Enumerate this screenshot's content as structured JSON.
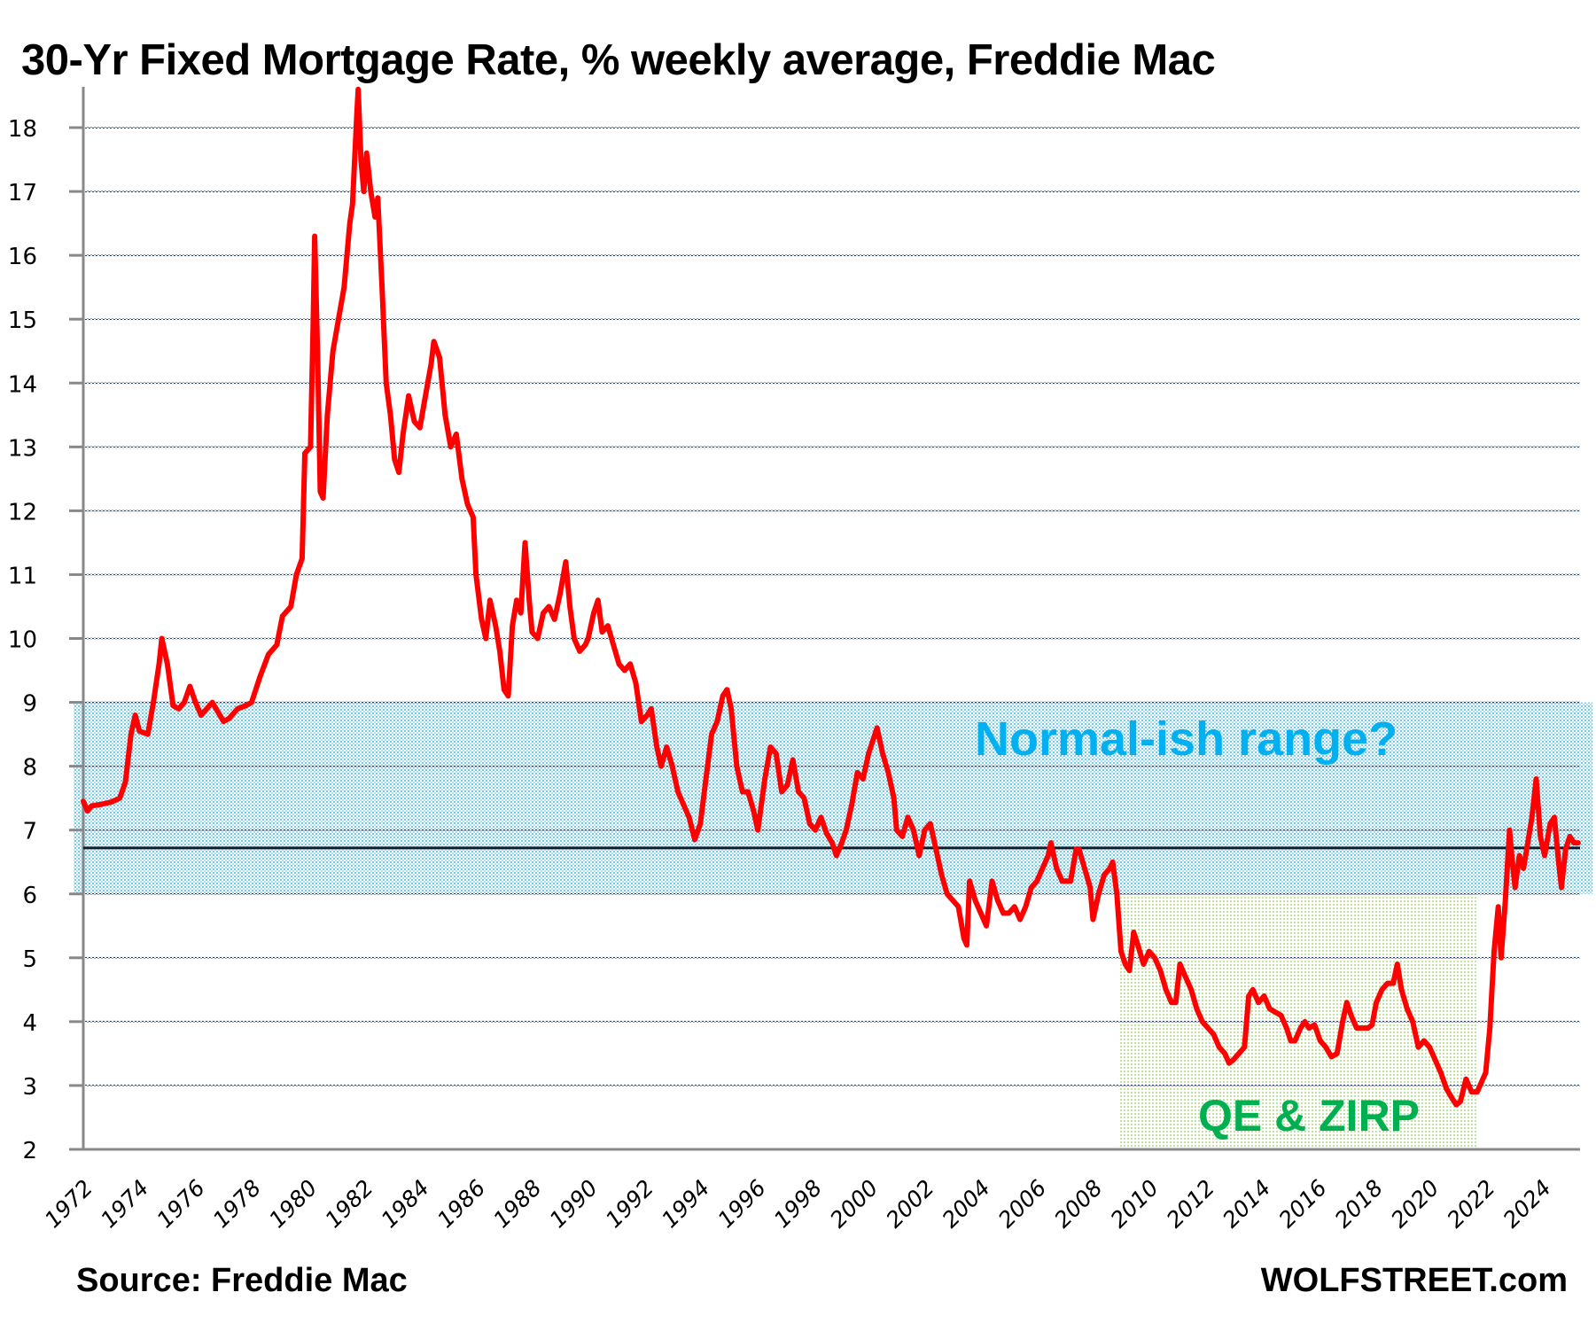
{
  "chart_data": {
    "type": "line",
    "title": "30-Yr Fixed Mortgage Rate, % weekly average, Freddie Mac",
    "xlabel": "",
    "ylabel": "",
    "xlim": [
      1972,
      2025.4
    ],
    "ylim": [
      2,
      18.7
    ],
    "grid": true,
    "y_ticks": [
      2,
      3,
      4,
      5,
      6,
      7,
      8,
      9,
      10,
      11,
      12,
      13,
      14,
      15,
      16,
      17,
      18
    ],
    "x_ticks": [
      "1972",
      "1974",
      "1976",
      "1978",
      "1980",
      "1982",
      "1984",
      "1986",
      "1988",
      "1990",
      "1992",
      "1994",
      "1996",
      "1998",
      "2000",
      "2002",
      "2004",
      "2006",
      "2008",
      "2010",
      "2012",
      "2014",
      "2016",
      "2018",
      "2020",
      "2022",
      "2024"
    ],
    "series": [
      {
        "name": "30-Yr Fixed Mortgage Rate",
        "color": "#ff0000",
        "points": [
          [
            1972.0,
            7.45
          ],
          [
            1972.15,
            7.3
          ],
          [
            1972.3,
            7.38
          ],
          [
            1972.6,
            7.4
          ],
          [
            1973.0,
            7.44
          ],
          [
            1973.3,
            7.5
          ],
          [
            1973.5,
            7.75
          ],
          [
            1973.7,
            8.5
          ],
          [
            1973.85,
            8.8
          ],
          [
            1974.0,
            8.55
          ],
          [
            1974.3,
            8.5
          ],
          [
            1974.5,
            9.0
          ],
          [
            1974.7,
            9.6
          ],
          [
            1974.8,
            10.0
          ],
          [
            1975.0,
            9.6
          ],
          [
            1975.2,
            8.95
          ],
          [
            1975.4,
            8.9
          ],
          [
            1975.6,
            9.0
          ],
          [
            1975.8,
            9.25
          ],
          [
            1976.0,
            9.0
          ],
          [
            1976.2,
            8.8
          ],
          [
            1976.4,
            8.9
          ],
          [
            1976.6,
            9.0
          ],
          [
            1976.8,
            8.85
          ],
          [
            1977.0,
            8.7
          ],
          [
            1977.2,
            8.75
          ],
          [
            1977.5,
            8.9
          ],
          [
            1977.8,
            8.95
          ],
          [
            1978.0,
            9.0
          ],
          [
            1978.3,
            9.4
          ],
          [
            1978.6,
            9.75
          ],
          [
            1978.9,
            9.9
          ],
          [
            1979.1,
            10.35
          ],
          [
            1979.4,
            10.5
          ],
          [
            1979.6,
            11.0
          ],
          [
            1979.8,
            11.25
          ],
          [
            1979.9,
            12.9
          ],
          [
            1980.1,
            13.0
          ],
          [
            1980.2,
            15.0
          ],
          [
            1980.25,
            16.3
          ],
          [
            1980.35,
            14.5
          ],
          [
            1980.45,
            12.3
          ],
          [
            1980.55,
            12.2
          ],
          [
            1980.7,
            13.5
          ],
          [
            1980.9,
            14.5
          ],
          [
            1981.1,
            15.0
          ],
          [
            1981.3,
            15.5
          ],
          [
            1981.5,
            16.5
          ],
          [
            1981.6,
            16.8
          ],
          [
            1981.75,
            18.2
          ],
          [
            1981.8,
            18.6
          ],
          [
            1981.9,
            17.5
          ],
          [
            1982.0,
            17.0
          ],
          [
            1982.1,
            17.6
          ],
          [
            1982.25,
            17.0
          ],
          [
            1982.4,
            16.6
          ],
          [
            1982.5,
            16.9
          ],
          [
            1982.65,
            15.5
          ],
          [
            1982.8,
            14.0
          ],
          [
            1982.95,
            13.5
          ],
          [
            1983.1,
            12.8
          ],
          [
            1983.25,
            12.6
          ],
          [
            1983.4,
            13.2
          ],
          [
            1983.6,
            13.8
          ],
          [
            1983.8,
            13.4
          ],
          [
            1984.0,
            13.3
          ],
          [
            1984.2,
            13.8
          ],
          [
            1984.4,
            14.3
          ],
          [
            1984.5,
            14.65
          ],
          [
            1984.7,
            14.4
          ],
          [
            1984.9,
            13.5
          ],
          [
            1985.1,
            13.0
          ],
          [
            1985.3,
            13.2
          ],
          [
            1985.5,
            12.5
          ],
          [
            1985.7,
            12.1
          ],
          [
            1985.9,
            11.9
          ],
          [
            1986.0,
            11.0
          ],
          [
            1986.2,
            10.3
          ],
          [
            1986.35,
            10.0
          ],
          [
            1986.5,
            10.6
          ],
          [
            1986.7,
            10.2
          ],
          [
            1986.85,
            9.8
          ],
          [
            1987.0,
            9.2
          ],
          [
            1987.15,
            9.1
          ],
          [
            1987.3,
            10.2
          ],
          [
            1987.45,
            10.6
          ],
          [
            1987.6,
            10.4
          ],
          [
            1987.75,
            11.5
          ],
          [
            1987.9,
            10.6
          ],
          [
            1988.0,
            10.1
          ],
          [
            1988.2,
            10.0
          ],
          [
            1988.4,
            10.4
          ],
          [
            1988.6,
            10.5
          ],
          [
            1988.8,
            10.3
          ],
          [
            1989.0,
            10.7
          ],
          [
            1989.2,
            11.2
          ],
          [
            1989.35,
            10.5
          ],
          [
            1989.5,
            10.0
          ],
          [
            1989.7,
            9.8
          ],
          [
            1989.9,
            9.9
          ],
          [
            1990.0,
            10.0
          ],
          [
            1990.2,
            10.4
          ],
          [
            1990.35,
            10.6
          ],
          [
            1990.5,
            10.1
          ],
          [
            1990.7,
            10.2
          ],
          [
            1990.9,
            9.9
          ],
          [
            1991.1,
            9.6
          ],
          [
            1991.3,
            9.5
          ],
          [
            1991.5,
            9.6
          ],
          [
            1991.7,
            9.3
          ],
          [
            1991.9,
            8.7
          ],
          [
            1992.1,
            8.8
          ],
          [
            1992.25,
            8.9
          ],
          [
            1992.45,
            8.3
          ],
          [
            1992.6,
            8.0
          ],
          [
            1992.8,
            8.3
          ],
          [
            1993.0,
            8.0
          ],
          [
            1993.2,
            7.6
          ],
          [
            1993.4,
            7.4
          ],
          [
            1993.6,
            7.2
          ],
          [
            1993.8,
            6.85
          ],
          [
            1994.0,
            7.1
          ],
          [
            1994.2,
            7.8
          ],
          [
            1994.4,
            8.5
          ],
          [
            1994.6,
            8.7
          ],
          [
            1994.8,
            9.1
          ],
          [
            1994.95,
            9.2
          ],
          [
            1995.1,
            8.9
          ],
          [
            1995.3,
            8.0
          ],
          [
            1995.5,
            7.6
          ],
          [
            1995.7,
            7.6
          ],
          [
            1995.9,
            7.3
          ],
          [
            1996.05,
            7.0
          ],
          [
            1996.3,
            7.8
          ],
          [
            1996.5,
            8.3
          ],
          [
            1996.7,
            8.2
          ],
          [
            1996.9,
            7.6
          ],
          [
            1997.1,
            7.7
          ],
          [
            1997.3,
            8.1
          ],
          [
            1997.5,
            7.6
          ],
          [
            1997.7,
            7.5
          ],
          [
            1997.9,
            7.1
          ],
          [
            1998.1,
            7.0
          ],
          [
            1998.3,
            7.2
          ],
          [
            1998.5,
            6.95
          ],
          [
            1998.7,
            6.8
          ],
          [
            1998.85,
            6.6
          ],
          [
            1999.0,
            6.75
          ],
          [
            1999.2,
            7.0
          ],
          [
            1999.4,
            7.4
          ],
          [
            1999.6,
            7.9
          ],
          [
            1999.8,
            7.8
          ],
          [
            2000.0,
            8.2
          ],
          [
            2000.3,
            8.6
          ],
          [
            2000.5,
            8.2
          ],
          [
            2000.7,
            7.9
          ],
          [
            2000.9,
            7.5
          ],
          [
            2001.0,
            7.0
          ],
          [
            2001.2,
            6.9
          ],
          [
            2001.4,
            7.2
          ],
          [
            2001.6,
            7.0
          ],
          [
            2001.8,
            6.6
          ],
          [
            2002.0,
            7.0
          ],
          [
            2002.2,
            7.1
          ],
          [
            2002.4,
            6.7
          ],
          [
            2002.6,
            6.3
          ],
          [
            2002.8,
            6.0
          ],
          [
            2003.0,
            5.9
          ],
          [
            2003.2,
            5.8
          ],
          [
            2003.4,
            5.3
          ],
          [
            2003.5,
            5.2
          ],
          [
            2003.6,
            6.2
          ],
          [
            2003.8,
            5.9
          ],
          [
            2004.0,
            5.7
          ],
          [
            2004.2,
            5.5
          ],
          [
            2004.4,
            6.2
          ],
          [
            2004.6,
            5.9
          ],
          [
            2004.8,
            5.7
          ],
          [
            2005.0,
            5.7
          ],
          [
            2005.2,
            5.8
          ],
          [
            2005.4,
            5.6
          ],
          [
            2005.6,
            5.8
          ],
          [
            2005.8,
            6.1
          ],
          [
            2006.0,
            6.2
          ],
          [
            2006.2,
            6.4
          ],
          [
            2006.4,
            6.6
          ],
          [
            2006.5,
            6.8
          ],
          [
            2006.7,
            6.4
          ],
          [
            2006.9,
            6.2
          ],
          [
            2007.0,
            6.2
          ],
          [
            2007.2,
            6.2
          ],
          [
            2007.4,
            6.7
          ],
          [
            2007.5,
            6.7
          ],
          [
            2007.7,
            6.4
          ],
          [
            2007.9,
            6.1
          ],
          [
            2008.0,
            5.6
          ],
          [
            2008.2,
            6.0
          ],
          [
            2008.4,
            6.3
          ],
          [
            2008.6,
            6.4
          ],
          [
            2008.7,
            6.5
          ],
          [
            2008.85,
            6.0
          ],
          [
            2009.0,
            5.1
          ],
          [
            2009.15,
            4.9
          ],
          [
            2009.3,
            4.8
          ],
          [
            2009.45,
            5.4
          ],
          [
            2009.6,
            5.2
          ],
          [
            2009.8,
            4.9
          ],
          [
            2010.0,
            5.1
          ],
          [
            2010.2,
            5.0
          ],
          [
            2010.4,
            4.8
          ],
          [
            2010.6,
            4.5
          ],
          [
            2010.8,
            4.3
          ],
          [
            2010.95,
            4.3
          ],
          [
            2011.1,
            4.9
          ],
          [
            2011.3,
            4.7
          ],
          [
            2011.5,
            4.5
          ],
          [
            2011.7,
            4.2
          ],
          [
            2011.9,
            4.0
          ],
          [
            2012.1,
            3.9
          ],
          [
            2012.3,
            3.8
          ],
          [
            2012.5,
            3.6
          ],
          [
            2012.7,
            3.5
          ],
          [
            2012.85,
            3.35
          ],
          [
            2013.0,
            3.4
          ],
          [
            2013.2,
            3.5
          ],
          [
            2013.4,
            3.6
          ],
          [
            2013.55,
            4.4
          ],
          [
            2013.7,
            4.5
          ],
          [
            2013.9,
            4.3
          ],
          [
            2014.1,
            4.4
          ],
          [
            2014.3,
            4.2
          ],
          [
            2014.5,
            4.15
          ],
          [
            2014.7,
            4.1
          ],
          [
            2014.9,
            3.9
          ],
          [
            2015.05,
            3.7
          ],
          [
            2015.2,
            3.7
          ],
          [
            2015.4,
            3.9
          ],
          [
            2015.55,
            4.0
          ],
          [
            2015.7,
            3.9
          ],
          [
            2015.9,
            3.95
          ],
          [
            2016.1,
            3.7
          ],
          [
            2016.3,
            3.6
          ],
          [
            2016.5,
            3.45
          ],
          [
            2016.7,
            3.5
          ],
          [
            2016.9,
            4.0
          ],
          [
            2017.05,
            4.3
          ],
          [
            2017.2,
            4.1
          ],
          [
            2017.4,
            3.9
          ],
          [
            2017.6,
            3.9
          ],
          [
            2017.8,
            3.9
          ],
          [
            2017.95,
            3.95
          ],
          [
            2018.1,
            4.3
          ],
          [
            2018.3,
            4.5
          ],
          [
            2018.5,
            4.6
          ],
          [
            2018.7,
            4.6
          ],
          [
            2018.85,
            4.9
          ],
          [
            2019.0,
            4.5
          ],
          [
            2019.2,
            4.2
          ],
          [
            2019.4,
            4.0
          ],
          [
            2019.6,
            3.6
          ],
          [
            2019.8,
            3.7
          ],
          [
            2020.0,
            3.6
          ],
          [
            2020.2,
            3.4
          ],
          [
            2020.4,
            3.2
          ],
          [
            2020.6,
            2.95
          ],
          [
            2020.8,
            2.8
          ],
          [
            2020.95,
            2.7
          ],
          [
            2021.1,
            2.75
          ],
          [
            2021.3,
            3.1
          ],
          [
            2021.5,
            2.9
          ],
          [
            2021.7,
            2.9
          ],
          [
            2021.9,
            3.1
          ],
          [
            2022.0,
            3.2
          ],
          [
            2022.15,
            3.9
          ],
          [
            2022.3,
            5.1
          ],
          [
            2022.45,
            5.8
          ],
          [
            2022.55,
            5.0
          ],
          [
            2022.7,
            5.9
          ],
          [
            2022.85,
            7.0
          ],
          [
            2022.95,
            6.5
          ],
          [
            2023.05,
            6.1
          ],
          [
            2023.2,
            6.6
          ],
          [
            2023.35,
            6.4
          ],
          [
            2023.5,
            6.8
          ],
          [
            2023.65,
            7.2
          ],
          [
            2023.8,
            7.8
          ],
          [
            2023.95,
            6.9
          ],
          [
            2024.1,
            6.6
          ],
          [
            2024.3,
            7.1
          ],
          [
            2024.45,
            7.2
          ],
          [
            2024.6,
            6.5
          ],
          [
            2024.7,
            6.1
          ],
          [
            2024.85,
            6.7
          ],
          [
            2025.0,
            6.9
          ],
          [
            2025.15,
            6.8
          ],
          [
            2025.3,
            6.8
          ]
        ]
      }
    ],
    "reference_line": {
      "name": "Average",
      "value": 6.72,
      "color": "#0d1b2a"
    },
    "shaded_regions": [
      {
        "name": "Normal-ish range band",
        "label": "Normal-ish range?",
        "y_from": 6,
        "y_to": 9,
        "color": "#00b0f0"
      },
      {
        "name": "QE and ZIRP era",
        "label": "QE & ZIRP",
        "x_from": 2008.9,
        "x_to": 2021.7,
        "y_from": 2,
        "y_to": 6,
        "color": "#92d050"
      }
    ],
    "annotations": [
      "Normal-ish range?",
      "QE & ZIRP"
    ]
  },
  "footer": {
    "source": "Source: Freddie Mac",
    "brand": "WOLFSTREET.com"
  }
}
